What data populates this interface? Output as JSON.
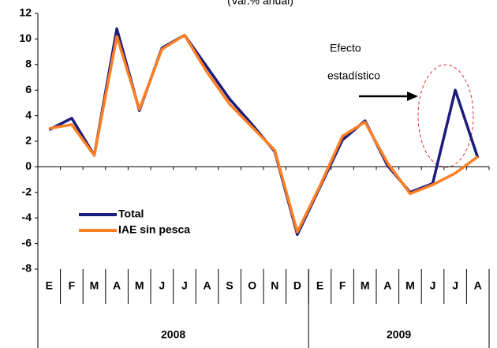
{
  "chart_data": {
    "type": "line",
    "title": "(Var.% anual)",
    "categories": [
      "E",
      "F",
      "M",
      "A",
      "M",
      "J",
      "J",
      "A",
      "S",
      "O",
      "N",
      "D",
      "E",
      "F",
      "M",
      "A",
      "M",
      "J",
      "J",
      "A"
    ],
    "category_years": [
      "2008",
      "2008",
      "2008",
      "2008",
      "2008",
      "2008",
      "2008",
      "2008",
      "2008",
      "2008",
      "2008",
      "2008",
      "2009",
      "2009",
      "2009",
      "2009",
      "2009",
      "2009",
      "2009",
      "2009"
    ],
    "series": [
      {
        "name": "Total",
        "color": "#1c1c7c",
        "values": [
          2.9,
          3.8,
          0.9,
          10.8,
          4.4,
          9.3,
          10.3,
          7.8,
          5.3,
          3.3,
          1.2,
          -5.3,
          -1.6,
          2.1,
          3.6,
          0.1,
          -2.0,
          -1.3,
          6.0,
          0.7
        ]
      },
      {
        "name": "IAE sin pesca",
        "color": "#ff7f24",
        "values": [
          3.0,
          3.3,
          0.9,
          10.2,
          4.5,
          9.2,
          10.3,
          7.4,
          4.9,
          3.1,
          1.3,
          -5.1,
          -1.5,
          2.4,
          3.5,
          0.3,
          -2.1,
          -1.4,
          -0.5,
          0.8
        ]
      }
    ],
    "ylim": [
      -8,
      12
    ],
    "yticks": [
      -8,
      -6,
      -4,
      -2,
      0,
      2,
      4,
      6,
      8,
      10,
      12
    ],
    "annotation": {
      "lines": [
        "Efecto",
        "estadístico"
      ]
    }
  }
}
